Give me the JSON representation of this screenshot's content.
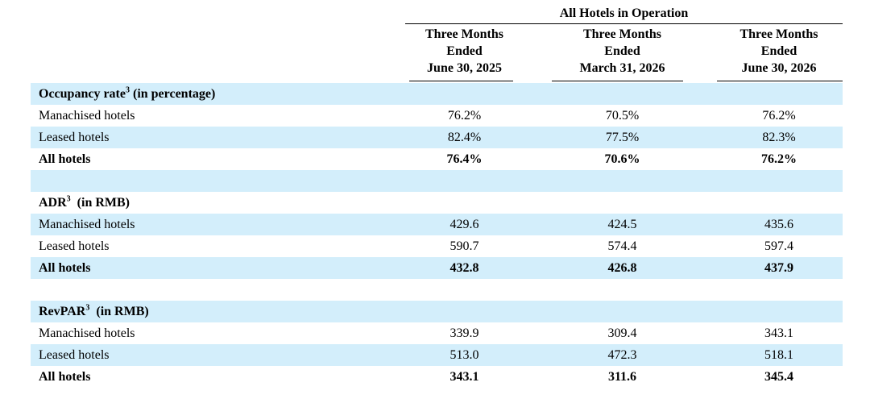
{
  "group_header": "All Hotels in Operation",
  "columns": [
    {
      "line1": "Three Months",
      "line2": "Ended",
      "line3": "June 30, 2025"
    },
    {
      "line1": "Three Months",
      "line2": "Ended",
      "line3": "March 31, 2026"
    },
    {
      "line1": "Three Months",
      "line2": "Ended",
      "line3": "June 30, 2026"
    }
  ],
  "sections": {
    "occupancy": {
      "title": "Occupancy rate",
      "sup": "3",
      "unit": " (in percentage)",
      "rows": [
        {
          "label": "Manachised hotels",
          "values": [
            "76.2%",
            "70.5%",
            "76.2%"
          ]
        },
        {
          "label": "Leased hotels",
          "values": [
            "82.4%",
            "77.5%",
            "82.3%"
          ]
        },
        {
          "label": "All hotels",
          "values": [
            "76.4%",
            "70.6%",
            "76.2%"
          ]
        }
      ]
    },
    "adr": {
      "title": "ADR",
      "sup": "3",
      "unit": "  (in RMB)",
      "rows": [
        {
          "label": "Manachised hotels",
          "values": [
            "429.6",
            "424.5",
            "435.6"
          ]
        },
        {
          "label": "Leased hotels",
          "values": [
            "590.7",
            "574.4",
            "597.4"
          ]
        },
        {
          "label": "All hotels",
          "values": [
            "432.8",
            "426.8",
            "437.9"
          ]
        }
      ]
    },
    "revpar": {
      "title": "RevPAR",
      "sup": "3",
      "unit": "  (in RMB)",
      "rows": [
        {
          "label": "Manachised hotels",
          "values": [
            "339.9",
            "309.4",
            "343.1"
          ]
        },
        {
          "label": "Leased hotels",
          "values": [
            "513.0",
            "472.3",
            "518.1"
          ]
        },
        {
          "label": "All hotels",
          "values": [
            "343.1",
            "311.6",
            "345.4"
          ]
        }
      ]
    }
  }
}
